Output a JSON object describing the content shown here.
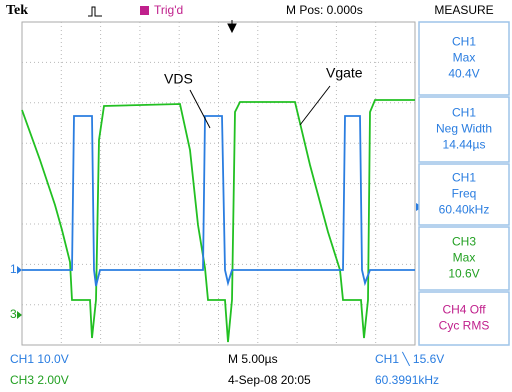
{
  "header": {
    "brand": "Tek",
    "trigger_status": "Trig'd",
    "position": "M Pos: 0.000s",
    "menu_title": "MEASURE"
  },
  "measurements": [
    {
      "lines": [
        "CH1",
        "Max",
        "40.4V"
      ]
    },
    {
      "lines": [
        "CH1",
        "Neg Width",
        "14.44µs"
      ]
    },
    {
      "lines": [
        "CH1",
        "Freq",
        "60.40kHz"
      ]
    },
    {
      "lines": [
        "CH3",
        "Max",
        "10.6V"
      ]
    },
    {
      "lines": [
        "CH4 Off",
        "Cyc RMS"
      ]
    }
  ],
  "annotations": [
    "VDS",
    "Vgate"
  ],
  "channel_markers": [
    "1",
    "3"
  ],
  "footer": {
    "ch1_scale": "CH1  10.0V",
    "ch3_scale": "CH3  2.00V",
    "timebase": "M 5.00µs",
    "date": "4-Sep-08 20:05",
    "trigger": "CH1 ╲ 15.6V",
    "frequency": "60.3991kHz"
  }
}
